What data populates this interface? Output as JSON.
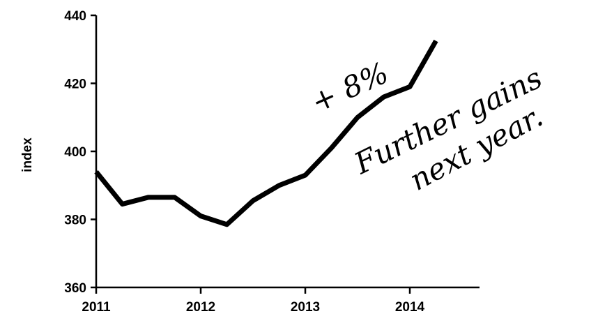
{
  "chart_data": {
    "type": "line",
    "title": "",
    "xlabel": "",
    "ylabel": "index",
    "xlim": [
      2011,
      2014.65
    ],
    "ylim": [
      360,
      440
    ],
    "x_ticks": [
      2011,
      2012,
      2013,
      2014
    ],
    "y_ticks": [
      360,
      380,
      400,
      420,
      440
    ],
    "x_tick_labels": [
      "2011",
      "2012",
      "2013",
      "2014"
    ],
    "y_tick_labels": [
      "360",
      "380",
      "400",
      "420",
      "440"
    ],
    "grid": false,
    "legend": "none",
    "line_color": "#000000",
    "series": [
      {
        "x": [
          2011,
          2011.25,
          2011.5,
          2011.75,
          2012,
          2012.25,
          2012.5,
          2012.75,
          2013,
          2013.25,
          2013.5,
          2013.75,
          2014,
          2014.25
        ],
        "values": [
          394,
          384.5,
          386.5,
          386.5,
          381,
          378.5,
          385.5,
          390,
          393,
          401,
          410,
          416,
          419,
          432.5
        ]
      }
    ],
    "annotations": [
      {
        "text": "+ 8%"
      },
      {
        "text": "Further gains"
      },
      {
        "text": "next year."
      }
    ]
  }
}
